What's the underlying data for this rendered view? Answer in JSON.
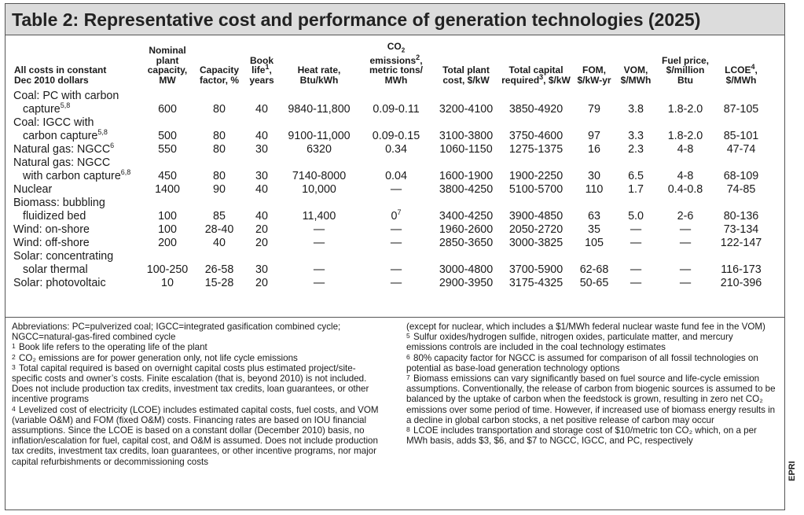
{
  "title": "Table 2: Representative cost and performance of generation technologies (2025)",
  "columns": [
    {
      "line1": "All costs in constant",
      "line2": "Dec 2010 dollars"
    },
    {
      "text": "Nominal plant capacity, MW"
    },
    {
      "text": "Capacity factor, %"
    },
    {
      "text": "Book life",
      "sup": "1",
      "after": ", years"
    },
    {
      "text": "Heat rate, Btu/kWh"
    },
    {
      "pre": "CO",
      "sub": "2",
      "mid": " emissions",
      "sup": "2",
      "after": ", metric tons/ MWh"
    },
    {
      "text": "Total plant cost, $/kW"
    },
    {
      "text": "Total capital required",
      "sup": "3",
      "after": ", $/kW"
    },
    {
      "text": "FOM, $/kW-yr"
    },
    {
      "text": "VOM, $/MWh"
    },
    {
      "text": "Fuel price, $/million Btu"
    },
    {
      "text": "LCOE",
      "sup": "4",
      "after": ", $/MWh"
    }
  ],
  "rows": [
    {
      "line1": "Coal: PC with carbon",
      "line2": "capture",
      "sup": "5,8",
      "values": [
        "600",
        "80",
        "40",
        "9840-11,800",
        "0.09-0.11",
        "3200-4100",
        "3850-4920",
        "79",
        "3.8",
        "1.8-2.0",
        "87-105"
      ]
    },
    {
      "line1": "Coal: IGCC with",
      "line2": "carbon capture",
      "sup": "5,8",
      "values": [
        "500",
        "80",
        "40",
        "9100-11,000",
        "0.09-0.15",
        "3100-3800",
        "3750-4600",
        "97",
        "3.3",
        "1.8-2.0",
        "85-101"
      ]
    },
    {
      "line1": "Natural gas: NGCC",
      "sup": "6",
      "values": [
        "550",
        "80",
        "30",
        "6320",
        "0.34",
        "1060-1150",
        "1275-1375",
        "16",
        "2.3",
        "4-8",
        "47-74"
      ]
    },
    {
      "line1": "Natural gas: NGCC",
      "line2": "with carbon capture",
      "sup": "6,8",
      "values": [
        "450",
        "80",
        "30",
        "7140-8000",
        "0.04",
        "1600-1900",
        "1900-2250",
        "30",
        "6.5",
        "4-8",
        "68-109"
      ]
    },
    {
      "line1": "Nuclear",
      "values": [
        "1400",
        "90",
        "40",
        "10,000",
        "—",
        "3800-4250",
        "5100-5700",
        "110",
        "1.7",
        "0.4-0.8",
        "74-85"
      ]
    },
    {
      "line1": "Biomass: bubbling",
      "line2": "fluidized bed",
      "values": [
        "100",
        "85",
        "40",
        "11,400",
        "0",
        "3400-4250",
        "3900-4850",
        "63",
        "5.0",
        "2-6",
        "80-136"
      ],
      "co2_sup": "7"
    },
    {
      "line1": "Wind: on-shore",
      "values": [
        "100",
        "28-40",
        "20",
        "—",
        "—",
        "1960-2600",
        "2050-2720",
        "35",
        "—",
        "—",
        "73-134"
      ]
    },
    {
      "line1": "Wind: off-shore",
      "values": [
        "200",
        "40",
        "20",
        "—",
        "—",
        "2850-3650",
        "3000-3825",
        "105",
        "—",
        "—",
        "122-147"
      ]
    },
    {
      "line1": "Solar: concentrating",
      "line2": "solar thermal",
      "values": [
        "100-250",
        "26-58",
        "30",
        "—",
        "—",
        "3000-4800",
        "3700-5900",
        "62-68",
        "—",
        "—",
        "116-173"
      ]
    },
    {
      "line1": "Solar: photovoltaic",
      "values": [
        "10",
        "15-28",
        "20",
        "—",
        "—",
        "2900-3950",
        "3175-4325",
        "50-65",
        "—",
        "—",
        "210-396"
      ]
    }
  ],
  "notes_left": [
    {
      "text": "Abbreviations: PC=pulverized coal; IGCC=integrated gasification combined cycle; NGCC=natural-gas-fired combined cycle"
    },
    {
      "num": "1",
      "text": "Book life refers to the operating life of the plant"
    },
    {
      "num": "2",
      "text": "CO₂ emissions are for power generation only, not life cycle emissions"
    },
    {
      "num": "3",
      "text": "Total capital required is based on overnight capital costs plus estimated project/site-specific costs and owner’s costs. Finite escalation (that is, beyond 2010) is not included. Does not include production tax credits, investment tax credits, loan guarantees, or other incentive programs"
    },
    {
      "num": "4",
      "text": "Levelized cost of electricity (LCOE) includes estimated capital costs, fuel costs, and VOM (variable O&M) and FOM (fixed O&M) costs. Financing rates are based on IOU financial assumptions. Since the LCOE is based on a constant dollar (December 2010) basis, no inflation/escalation for fuel, capital cost, and O&M is assumed. Does not include production tax credits, investment tax credits, loan guarantees, or other incentive programs, nor major capital refurbishments or decommissioning costs"
    }
  ],
  "notes_right": [
    {
      "text": "(except for nuclear, which includes a $1/MWh federal nuclear waste fund fee in the VOM)"
    },
    {
      "num": "5",
      "text": "Sulfur oxides/hydrogen sulfide, nitrogen oxides, particulate matter, and mercury emissions controls are included in the coal technology estimates"
    },
    {
      "num": "6",
      "text": "80% capacity factor for NGCC is assumed for comparison of all fossil technologies on potential as base-load generation technology options"
    },
    {
      "num": "7",
      "text": "Biomass emissions can vary significantly based on fuel source and life-cycle emission assumptions. Conventionally, the release of carbon from biogenic sources is assumed to be balanced by the uptake of carbon when the feedstock is grown, resulting in zero net CO₂ emissions over some period of time. However, if increased use of biomass energy results in a decline in global carbon stocks, a net positive release of carbon may occur"
    },
    {
      "num": "8",
      "text": "LCOE includes transportation and storage cost of $10/metric ton CO₂ which, on a per MWh basis, adds $3, $6, and $7 to NGCC, IGCC, and PC, respectively"
    }
  ],
  "credit": "EPRI"
}
